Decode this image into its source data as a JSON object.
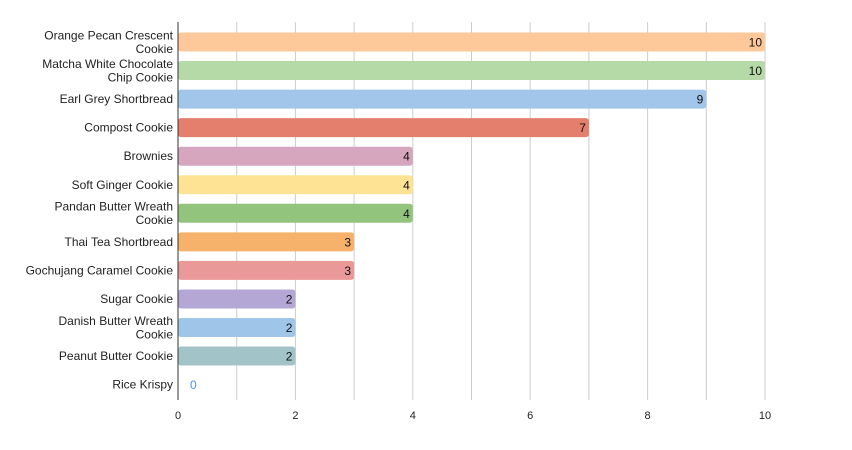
{
  "chart_data": {
    "type": "bar",
    "orientation": "horizontal",
    "title": "",
    "xlabel": "",
    "ylabel": "",
    "xlim": [
      0,
      10
    ],
    "x_ticks": [
      0,
      2,
      4,
      6,
      8,
      10
    ],
    "grid": true,
    "legend": "none",
    "categories": [
      "Orange Pecan Crescent Cookie",
      "Matcha White Chocolate Chip Cookie",
      "Earl Grey Shortbread",
      "Compost Cookie",
      "Brownies",
      "Soft Ginger Cookie",
      "Pandan Butter Wreath Cookie",
      "Thai Tea Shortbread",
      "Gochujang Caramel Cookie",
      "Sugar Cookie",
      "Danish Butter Wreath Cookie",
      "Peanut Butter Cookie",
      "Rice Krispy"
    ],
    "values": [
      10,
      10,
      9,
      7,
      4,
      4,
      4,
      3,
      3,
      2,
      2,
      2,
      0
    ],
    "colors": [
      "#fdc99b",
      "#b5d9a7",
      "#a2c5ea",
      "#e47f6e",
      "#d5a6be",
      "#fde393",
      "#93c47d",
      "#f6b26b",
      "#ea9999",
      "#b4a7d6",
      "#9fc5e8",
      "#a2c4c9",
      "#cfe2f3"
    ],
    "zero_label_color": "#4a90d9",
    "grid_color": "#cccccc",
    "axis_color": "#333333"
  }
}
